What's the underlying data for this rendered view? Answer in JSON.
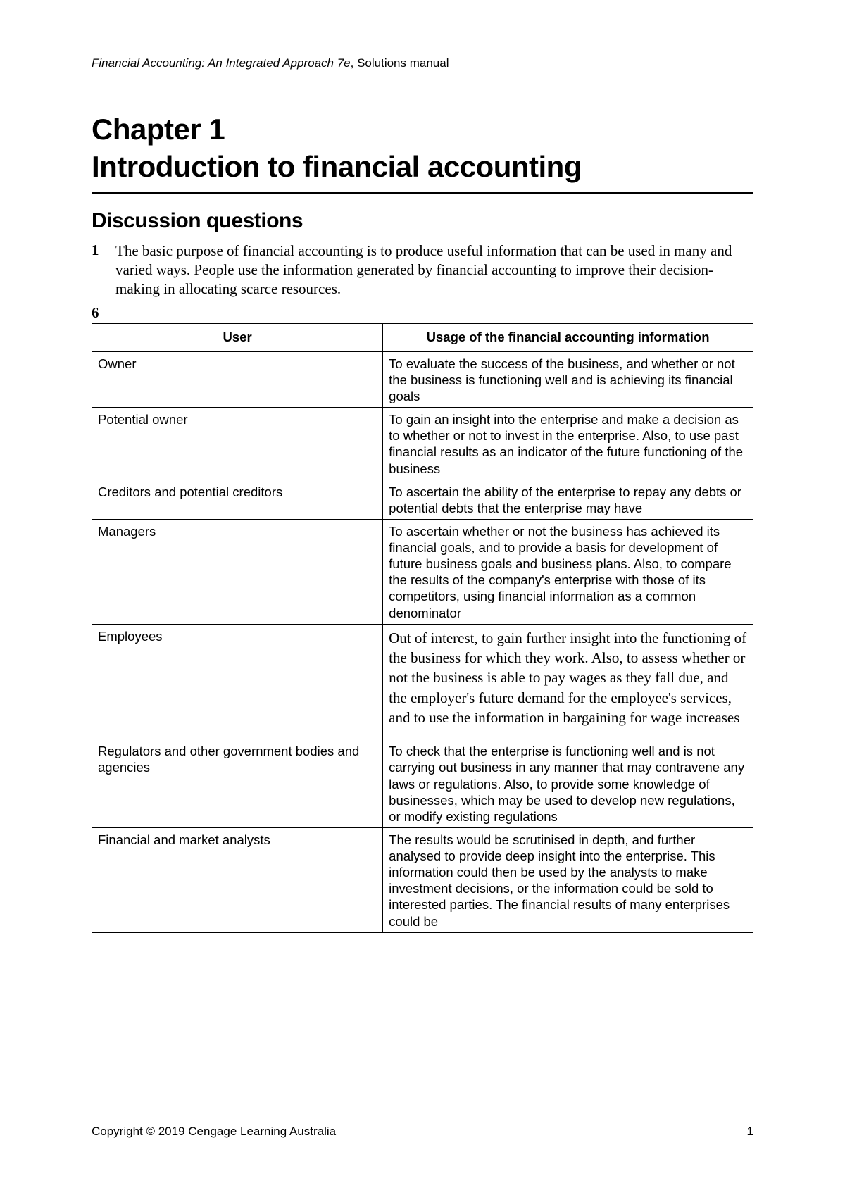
{
  "header": {
    "title_italic": "Financial Accounting: An Integrated Approach 7e",
    "title_rest": ", Solutions manual"
  },
  "chapter": {
    "line1": "Chapter 1",
    "line2": "Introduction to financial accounting"
  },
  "section": "Discussion questions",
  "q1": {
    "num": "1",
    "text": "The basic purpose of financial accounting is to produce useful information that can be used in many and varied ways. People use the information generated by financial accounting to improve their decision-making in allocating scarce resources."
  },
  "q6_marker": "6",
  "table": {
    "col1": "User",
    "col2": "Usage of the financial accounting information",
    "rows": [
      {
        "user": "Owner",
        "usage": "To evaluate the success of the business, and whether or not the business is functioning well and is achieving its financial goals",
        "serif": false
      },
      {
        "user": "Potential owner",
        "usage": "To gain an insight into the enterprise and make a decision as to whether or not to invest in the enterprise. Also, to use past financial results as an indicator of the future functioning of the business",
        "serif": false
      },
      {
        "user": "Creditors and potential creditors",
        "usage": "To ascertain the ability of the enterprise to repay any debts or potential debts that the enterprise may have",
        "serif": false
      },
      {
        "user": "Managers",
        "usage": "To ascertain whether or not the business has achieved its financial goals, and to provide a basis for development of future business goals and business plans. Also, to compare the results of the company's enterprise with those of its competitors, using financial information as a common denominator",
        "serif": false
      },
      {
        "user": "Employees",
        "usage": "Out of interest, to gain further insight into the functioning of the business for which they work. Also, to assess whether or not the business is able to pay wages as they fall due, and the employer's future demand for the employee's services, and to use the information in bargaining for wage increases",
        "serif": true
      },
      {
        "user": "Regulators and other government bodies and agencies",
        "usage": "To check that the enterprise is functioning well and is not carrying out business in any manner that may contravene any laws or regulations. Also, to provide some knowledge of businesses, which may be used to develop new regulations, or modify existing regulations",
        "serif": false
      },
      {
        "user": "Financial and market analysts",
        "usage": "The results would be scrutinised in depth, and further analysed to provide deep insight into the enterprise. This information could then be used by the analysts to make investment decisions, or the information could be sold to interested parties. The financial results of many enterprises could be",
        "serif": false
      }
    ]
  },
  "footer": {
    "copyright": "Copyright © 2019 Cengage Learning Australia",
    "page": "1"
  }
}
